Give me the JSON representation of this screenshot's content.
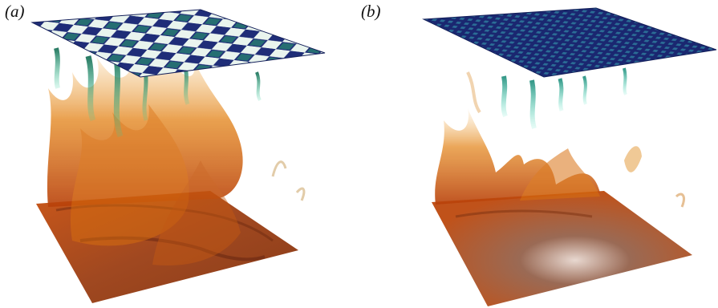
{
  "figure": {
    "panels": [
      {
        "id": "a",
        "label": "(a)",
        "top_plate": "checkerboard",
        "top_color": "#1f2d78",
        "plume_color": "#e07a10",
        "cold_color": "#1ca07a"
      },
      {
        "id": "b",
        "label": "(b)",
        "top_plate": "fine-grid",
        "top_color": "#1a2770",
        "plume_color": "#e07a10",
        "cold_color": "#22b79a"
      }
    ]
  }
}
